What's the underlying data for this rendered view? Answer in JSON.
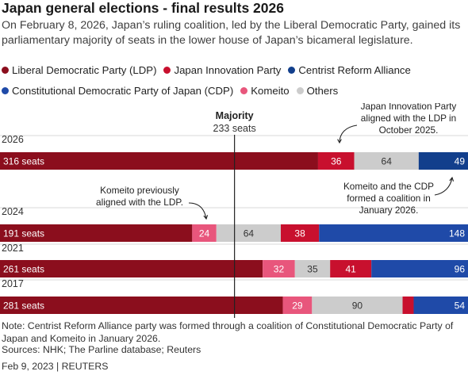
{
  "title": "Japan general elections - final results 2026",
  "subtitle": "On February 8, 2026, Japan’s ruling coalition, led by the Liberal Democratic Party, gained its parliamentary majority of seats in the lower house of Japan’s bicameral legislature.",
  "colors": {
    "LDP": "#8b0e1d",
    "JIP": "#c8102e",
    "CRA": "#123f8c",
    "CDP": "#1f4aa8",
    "Komeito": "#e8567c",
    "Others": "#cccccc"
  },
  "legend": [
    [
      {
        "label": "Liberal Democratic Party (LDP)",
        "color": "#8b0e1d"
      },
      {
        "label": "Japan Innovation Party",
        "color": "#c8102e"
      },
      {
        "label": "Centrist Reform Alliance",
        "color": "#123f8c"
      }
    ],
    [
      {
        "label": "Constitutional Democratic Party of Japan (CDP)",
        "color": "#1f4aa8"
      },
      {
        "label": "Komeito",
        "color": "#e8567c"
      },
      {
        "label": "Others",
        "color": "#cccccc"
      }
    ]
  ],
  "chart_data": {
    "type": "bar",
    "orientation": "horizontal-stacked",
    "total_seats": 465,
    "majority": {
      "title": "Majority",
      "label": "233 seats",
      "value": 233
    },
    "rows": [
      {
        "year": "2026",
        "segments": [
          {
            "party": "LDP",
            "value": 316,
            "label": "316 seats"
          },
          {
            "party": "JIP",
            "value": 36,
            "label": "36"
          },
          {
            "party": "Others",
            "value": 64,
            "label": "64"
          },
          {
            "party": "CRA",
            "value": 49,
            "label": "49"
          }
        ]
      },
      {
        "year": "2024",
        "segments": [
          {
            "party": "LDP",
            "value": 191,
            "label": "191 seats"
          },
          {
            "party": "Komeito",
            "value": 24,
            "label": "24"
          },
          {
            "party": "Others",
            "value": 64,
            "label": "64"
          },
          {
            "party": "JIP",
            "value": 38,
            "label": "38"
          },
          {
            "party": "CDP",
            "value": 148,
            "label": "148"
          }
        ]
      },
      {
        "year": "2021",
        "segments": [
          {
            "party": "LDP",
            "value": 261,
            "label": "261 seats"
          },
          {
            "party": "Komeito",
            "value": 32,
            "label": "32"
          },
          {
            "party": "Others",
            "value": 35,
            "label": "35"
          },
          {
            "party": "JIP",
            "value": 41,
            "label": "41"
          },
          {
            "party": "CDP",
            "value": 96,
            "label": "96"
          }
        ]
      },
      {
        "year": "2017",
        "segments": [
          {
            "party": "LDP",
            "value": 281,
            "label": "281 seats"
          },
          {
            "party": "Komeito",
            "value": 29,
            "label": "29"
          },
          {
            "party": "Others",
            "value": 90,
            "label": "90"
          },
          {
            "party": "JIP",
            "value": 11,
            "label": ""
          },
          {
            "party": "CDP",
            "value": 54,
            "label": "54"
          }
        ]
      }
    ],
    "annotations": [
      {
        "text": [
          "Japan Innovation Party",
          "aligned with the LDP in",
          "October 2025."
        ]
      },
      {
        "text": [
          "Komeito previously",
          "aligned with the LDP."
        ]
      },
      {
        "text": [
          "Komeito and the CDP",
          "formed a coalition in",
          "January 2026."
        ]
      }
    ]
  },
  "note": "Note: Centrist Reform Alliance party was formed through a coalition of Constitutional Democratic Party of Japan and Komeito in January 2026.",
  "sources": "Sources: NHK; The Parline database; Reuters",
  "dateline": "Feb 9, 2023 | REUTERS"
}
